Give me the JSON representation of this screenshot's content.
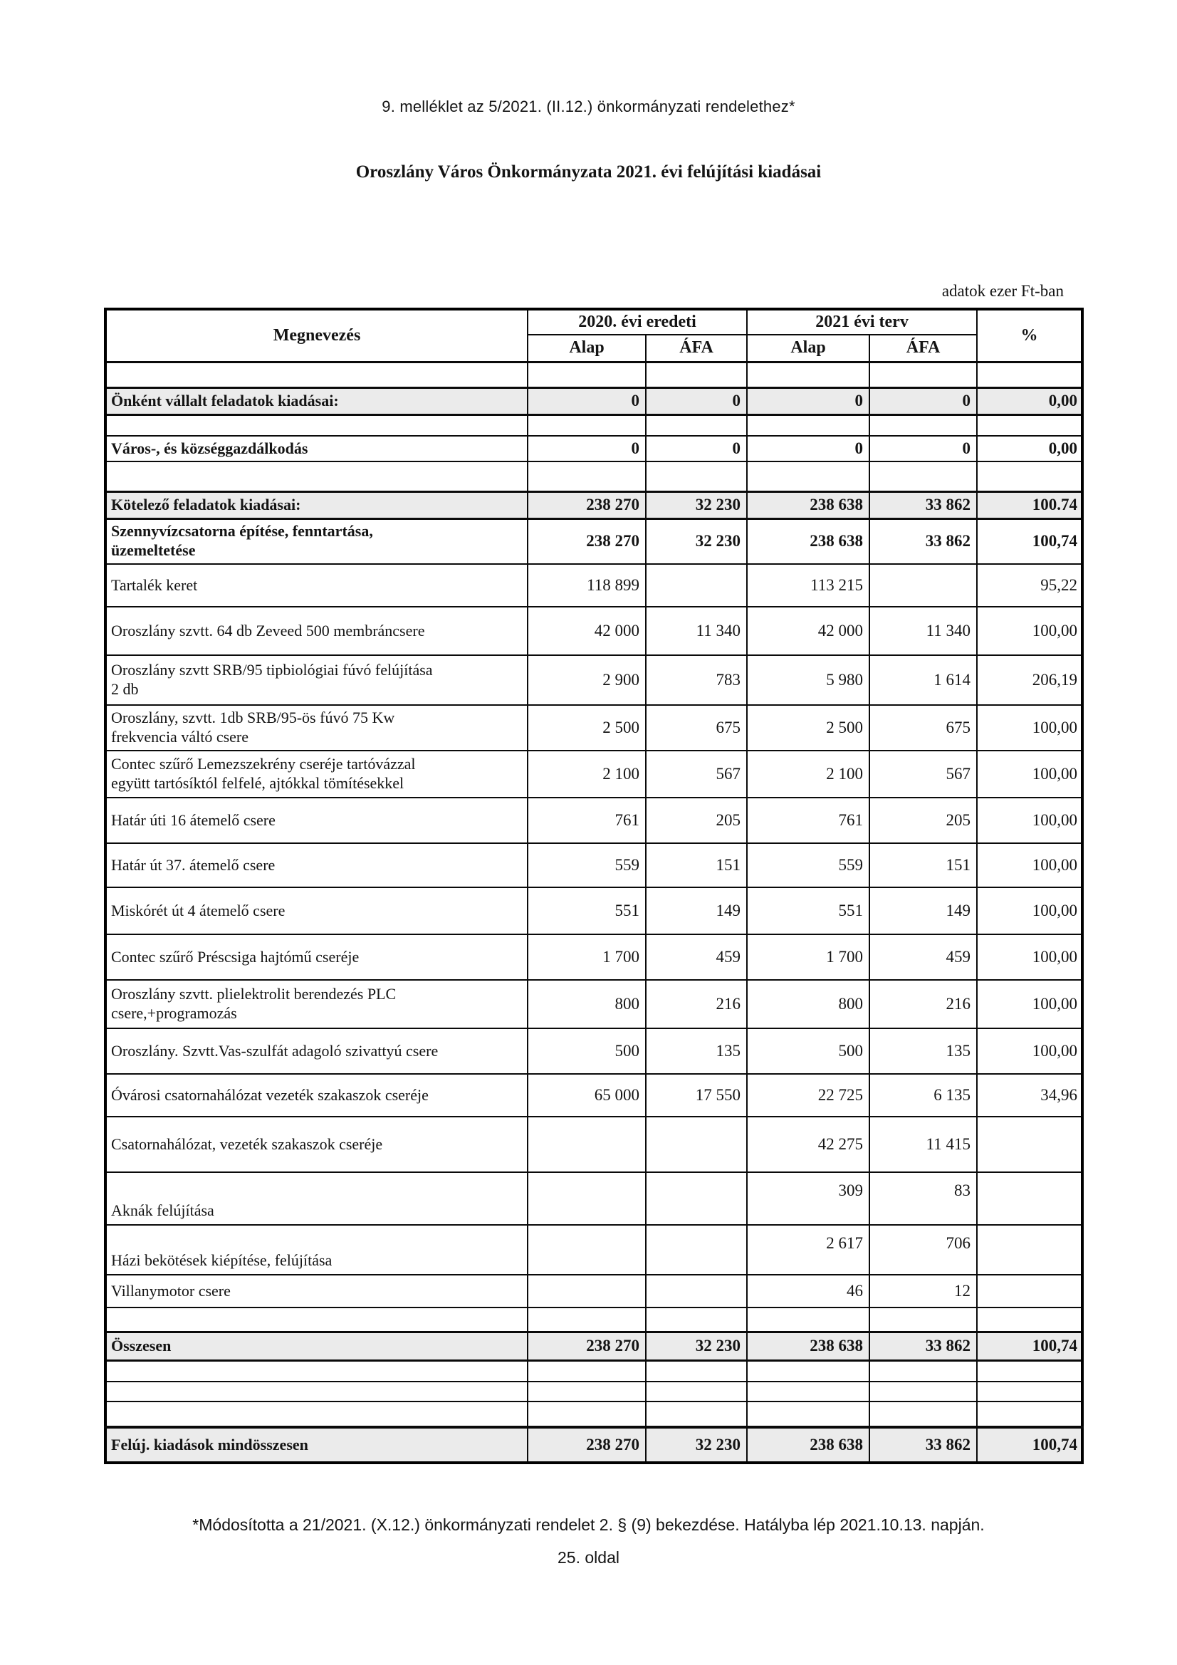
{
  "page": {
    "annex_line": "9. melléklet az 5/2021. (II.12.) önkormányzati rendelethez*",
    "title": "Oroszlány Város Önkormányzata 2021. évi felújítási kiadásai",
    "unit_note": "adatok ezer Ft-ban",
    "footnote": "*Módosította a 21/2021. (X.12.) önkormányzati rendelet 2. § (9) bekezdése. Hatályba lép 2021.10.13. napján.",
    "page_number": "25. oldal"
  },
  "colors": {
    "shaded_row": "#ebebeb",
    "border": "#000000",
    "text": "#141414"
  },
  "table": {
    "header": {
      "col_name": "Megnevezés",
      "group_2020": "2020. évi eredeti",
      "group_2021": "2021 évi terv",
      "pct": "%",
      "subcols": [
        "Alap",
        "ÁFA",
        "Alap",
        "ÁFA"
      ]
    },
    "rows": [
      {
        "type": "spacer"
      },
      {
        "type": "section",
        "label": "Önként vállalt feladatok kiadásai:",
        "v": [
          "0",
          "0",
          "0",
          "0",
          "0,00"
        ]
      },
      {
        "type": "spacer"
      },
      {
        "type": "bold",
        "label": "Város-, és községgazdálkodás",
        "v": [
          "0",
          "0",
          "0",
          "0",
          "0,00"
        ]
      },
      {
        "type": "spacer"
      },
      {
        "type": "section",
        "label": "Kötelező feladatok kiadásai:",
        "v": [
          "238 270",
          "32 230",
          "238 638",
          "33 862",
          "100.74"
        ],
        "pct_regular": true
      },
      {
        "type": "bold",
        "label": "Szennyvízcsatorna építése, fenntartása,\nüzemeltetése",
        "v": [
          "238 270",
          "32 230",
          "238 638",
          "33 862",
          "100,74"
        ]
      },
      {
        "type": "data",
        "label": "Tartalék keret",
        "v": [
          "118 899",
          "",
          "113 215",
          "",
          "95,22"
        ]
      },
      {
        "type": "data",
        "label": "Oroszlány szvtt. 64 db Zeveed 500 membráncsere",
        "v": [
          "42 000",
          "11 340",
          "42 000",
          "11 340",
          "100,00"
        ]
      },
      {
        "type": "data",
        "label": "Oroszlány szvtt SRB/95 tipbiológiai fúvó felújítása\n2 db",
        "v": [
          "2 900",
          "783",
          "5 980",
          "1 614",
          "206,19"
        ]
      },
      {
        "type": "data",
        "label": "Oroszlány, szvtt. 1db SRB/95-ös fúvó 75 Kw\nfrekvencia váltó csere",
        "v": [
          "2 500",
          "675",
          "2 500",
          "675",
          "100,00"
        ]
      },
      {
        "type": "data",
        "label": "Contec szűrő Lemezszekrény cseréje tartóvázzal\negyütt tartósíktól felfelé, ajtókkal tömítésekkel",
        "v": [
          "2 100",
          "567",
          "2 100",
          "567",
          "100,00"
        ]
      },
      {
        "type": "data",
        "label": "Határ úti 16 átemelő csere",
        "v": [
          "761",
          "205",
          "761",
          "205",
          "100,00"
        ]
      },
      {
        "type": "data",
        "label": "Határ út 37. átemelő csere",
        "v": [
          "559",
          "151",
          "559",
          "151",
          "100,00"
        ]
      },
      {
        "type": "data",
        "label": "Miskórét út 4 átemelő csere",
        "v": [
          "551",
          "149",
          "551",
          "149",
          "100,00"
        ]
      },
      {
        "type": "data",
        "label": "Contec szűrő Préscsiga hajtómű cseréje",
        "v": [
          "1 700",
          "459",
          "1 700",
          "459",
          "100,00"
        ]
      },
      {
        "type": "data",
        "label": "Oroszlány szvtt. plielektrolit berendezés PLC\ncsere,+programozás",
        "v": [
          "800",
          "216",
          "800",
          "216",
          "100,00"
        ]
      },
      {
        "type": "data",
        "label": "Oroszlány. Szvtt.Vas-szulfát adagoló szivattyú csere",
        "v": [
          "500",
          "135",
          "500",
          "135",
          "100,00"
        ]
      },
      {
        "type": "data",
        "label": "Óvárosi csatornahálózat  vezeték szakaszok cseréje",
        "v": [
          "65 000",
          "17 550",
          "22 725",
          "6 135",
          "34,96"
        ]
      },
      {
        "type": "data",
        "label": "Csatornahálózat, vezeték szakaszok cseréje",
        "v": [
          "",
          "",
          "42 275",
          "11 415",
          ""
        ]
      },
      {
        "type": "data",
        "label": "Aknák felújítása",
        "v": [
          "",
          "",
          "309",
          "83",
          ""
        ],
        "split": true
      },
      {
        "type": "data",
        "label": "Házi bekötések kiépítése, felújítása",
        "v": [
          "",
          "",
          "2 617",
          "706",
          ""
        ],
        "split": true
      },
      {
        "type": "data",
        "label": "Villanymotor csere",
        "v": [
          "",
          "",
          "46",
          "12",
          ""
        ]
      },
      {
        "type": "spacer"
      },
      {
        "type": "section",
        "label": "Összesen",
        "v": [
          "238 270",
          "32 230",
          "238 638",
          "33 862",
          "100,74"
        ]
      },
      {
        "type": "spacer"
      },
      {
        "type": "spacer"
      },
      {
        "type": "spacer"
      },
      {
        "type": "section",
        "label": "Felúj. kiadások mindösszesen",
        "v": [
          "238 270",
          "32 230",
          "238 638",
          "33 862",
          "100,74"
        ],
        "thick_top": true
      }
    ]
  }
}
